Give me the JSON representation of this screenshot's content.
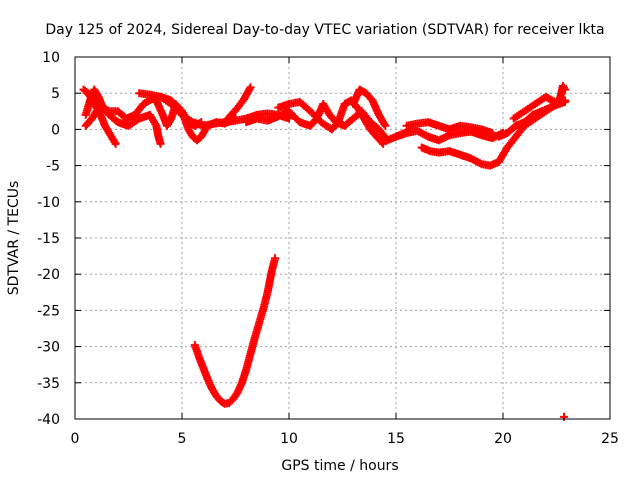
{
  "chart_data": {
    "type": "scatter",
    "title": "Day 125 of 2024, Sidereal Day-to-day VTEC variation (SDTVAR) for receiver lkta",
    "xlabel": "GPS time / hours",
    "ylabel": "SDTVAR / TECUs",
    "xlim": [
      0,
      25
    ],
    "ylim": [
      -40,
      10
    ],
    "xticks": [
      0,
      5,
      10,
      15,
      20,
      25
    ],
    "yticks": [
      10,
      5,
      0,
      -5,
      -10,
      -15,
      -20,
      -25,
      -30,
      -35,
      -40
    ],
    "grid": true,
    "marker": "+",
    "color": "#ff0000",
    "series": [
      {
        "name": "trace-1",
        "points": [
          [
            0.4,
            5.5
          ],
          [
            0.6,
            5.0
          ],
          [
            0.8,
            4.2
          ],
          [
            1.0,
            3.0
          ],
          [
            1.2,
            2.0
          ],
          [
            1.4,
            0.5
          ],
          [
            1.6,
            -0.5
          ],
          [
            1.8,
            -1.5
          ],
          [
            1.9,
            -2.0
          ]
        ]
      },
      {
        "name": "trace-2",
        "points": [
          [
            0.5,
            2.0
          ],
          [
            0.7,
            4.0
          ],
          [
            0.9,
            5.5
          ],
          [
            1.1,
            4.5
          ],
          [
            1.3,
            3.0
          ],
          [
            1.6,
            2.5
          ],
          [
            2.0,
            2.5
          ],
          [
            2.4,
            1.5
          ],
          [
            2.8,
            2.0
          ],
          [
            3.2,
            3.5
          ],
          [
            3.6,
            4.2
          ],
          [
            4.0,
            4.5
          ],
          [
            4.5,
            3.5
          ],
          [
            5.0,
            2.0
          ],
          [
            5.5,
            1.0
          ],
          [
            6.0,
            0.5
          ],
          [
            6.5,
            0.8
          ],
          [
            7.0,
            1.0
          ],
          [
            7.5,
            1.2
          ],
          [
            8.0,
            1.5
          ],
          [
            8.5,
            2.0
          ],
          [
            9.0,
            2.2
          ],
          [
            9.5,
            2.0
          ],
          [
            10.0,
            1.5
          ]
        ]
      },
      {
        "name": "trace-3",
        "points": [
          [
            0.5,
            0.5
          ],
          [
            0.8,
            1.5
          ],
          [
            1.2,
            3.5
          ],
          [
            1.6,
            2.0
          ],
          [
            2.0,
            1.0
          ],
          [
            2.5,
            0.5
          ],
          [
            3.0,
            1.5
          ],
          [
            3.5,
            2.0
          ],
          [
            3.8,
            0.5
          ],
          [
            3.9,
            -1.0
          ],
          [
            4.0,
            -2.0
          ]
        ]
      },
      {
        "name": "trace-4",
        "points": [
          [
            3.0,
            5.0
          ],
          [
            3.5,
            4.8
          ],
          [
            4.0,
            4.5
          ],
          [
            4.5,
            4.0
          ],
          [
            4.8,
            3.0
          ],
          [
            5.0,
            2.5
          ],
          [
            5.3,
            1.0
          ],
          [
            5.6,
            0.5
          ],
          [
            5.9,
            1.0
          ]
        ]
      },
      {
        "name": "trace-5",
        "points": [
          [
            3.8,
            4.0
          ],
          [
            4.1,
            2.0
          ],
          [
            4.3,
            0.5
          ],
          [
            4.5,
            1.5
          ],
          [
            4.7,
            3.5
          ],
          [
            5.0,
            2.5
          ],
          [
            5.3,
            0.0
          ],
          [
            5.5,
            -1.0
          ],
          [
            5.7,
            -1.5
          ],
          [
            5.9,
            -1.0
          ],
          [
            6.2,
            0.5
          ],
          [
            6.6,
            1.0
          ],
          [
            7.0,
            0.8
          ],
          [
            7.5,
            1.5
          ]
        ]
      },
      {
        "name": "trace-6",
        "points": [
          [
            7.0,
            1.0
          ],
          [
            7.3,
            2.0
          ],
          [
            7.6,
            3.0
          ],
          [
            7.9,
            4.2
          ],
          [
            8.2,
            5.8
          ]
        ]
      },
      {
        "name": "trace-7",
        "points": [
          [
            8.0,
            1.0
          ],
          [
            8.5,
            1.5
          ],
          [
            9.0,
            1.2
          ],
          [
            9.5,
            1.8
          ],
          [
            10.0,
            2.5
          ],
          [
            10.5,
            1.0
          ],
          [
            11.0,
            0.5
          ],
          [
            11.3,
            1.5
          ],
          [
            11.6,
            3.5
          ],
          [
            11.9,
            2.0
          ],
          [
            12.2,
            1.0
          ],
          [
            12.6,
            0.5
          ],
          [
            13.0,
            1.5
          ],
          [
            13.4,
            2.5
          ],
          [
            13.8,
            1.0
          ],
          [
            14.2,
            0.0
          ],
          [
            14.6,
            -1.5
          ],
          [
            15.0,
            -1.0
          ],
          [
            15.4,
            -0.5
          ],
          [
            15.8,
            0.0
          ]
        ]
      },
      {
        "name": "trace-8",
        "points": [
          [
            9.5,
            3.0
          ],
          [
            10.0,
            3.5
          ],
          [
            10.5,
            3.8
          ],
          [
            11.0,
            2.5
          ],
          [
            11.5,
            1.0
          ],
          [
            12.0,
            0.0
          ],
          [
            12.3,
            1.0
          ],
          [
            12.6,
            3.5
          ],
          [
            12.9,
            4.0
          ],
          [
            13.2,
            3.0
          ],
          [
            13.5,
            1.5
          ],
          [
            13.8,
            0.0
          ],
          [
            14.1,
            -1.0
          ],
          [
            14.4,
            -2.0
          ]
        ]
      },
      {
        "name": "trace-9",
        "points": [
          [
            13.0,
            3.5
          ],
          [
            13.3,
            5.5
          ],
          [
            13.6,
            5.0
          ],
          [
            13.9,
            4.0
          ],
          [
            14.2,
            2.0
          ],
          [
            14.5,
            0.5
          ]
        ]
      },
      {
        "name": "trace-10",
        "points": [
          [
            15.0,
            -1.0
          ],
          [
            15.5,
            -0.5
          ],
          [
            16.0,
            -0.2
          ],
          [
            16.5,
            -1.0
          ],
          [
            17.0,
            -1.5
          ],
          [
            17.5,
            -0.8
          ],
          [
            18.0,
            -0.5
          ],
          [
            18.5,
            -0.3
          ],
          [
            19.0,
            -0.8
          ],
          [
            19.5,
            -1.2
          ],
          [
            20.0,
            -0.5
          ]
        ]
      },
      {
        "name": "trace-11",
        "points": [
          [
            15.5,
            0.5
          ],
          [
            16.0,
            0.8
          ],
          [
            16.5,
            1.0
          ],
          [
            17.0,
            0.5
          ],
          [
            17.5,
            0.0
          ],
          [
            18.0,
            0.5
          ],
          [
            18.5,
            0.3
          ],
          [
            19.0,
            0.0
          ],
          [
            19.5,
            -0.5
          ]
        ]
      },
      {
        "name": "trace-12",
        "points": [
          [
            16.2,
            -2.5
          ],
          [
            16.6,
            -3.0
          ],
          [
            17.0,
            -3.2
          ],
          [
            17.5,
            -3.0
          ],
          [
            18.0,
            -3.5
          ],
          [
            18.5,
            -4.0
          ],
          [
            19.0,
            -4.8
          ],
          [
            19.4,
            -5.0
          ],
          [
            19.8,
            -4.5
          ],
          [
            20.2,
            -2.5
          ],
          [
            20.6,
            -1.0
          ],
          [
            21.0,
            0.5
          ],
          [
            21.5,
            1.5
          ],
          [
            22.0,
            2.5
          ],
          [
            22.5,
            3.5
          ],
          [
            22.9,
            4.0
          ]
        ]
      },
      {
        "name": "trace-13",
        "points": [
          [
            19.8,
            -1.0
          ],
          [
            20.2,
            -0.5
          ],
          [
            20.6,
            0.5
          ],
          [
            21.0,
            1.0
          ],
          [
            21.4,
            2.0
          ],
          [
            21.8,
            2.5
          ],
          [
            22.2,
            3.0
          ],
          [
            22.6,
            3.5
          ],
          [
            22.9,
            3.8
          ]
        ]
      },
      {
        "name": "trace-14",
        "points": [
          [
            20.5,
            1.5
          ],
          [
            21.0,
            2.5
          ],
          [
            21.5,
            3.5
          ],
          [
            22.0,
            4.5
          ],
          [
            22.3,
            4.0
          ],
          [
            22.6,
            3.5
          ],
          [
            22.8,
            6.0
          ],
          [
            22.9,
            5.5
          ]
        ]
      },
      {
        "name": "trace-15",
        "points": [
          [
            5.6,
            -29.8
          ],
          [
            5.8,
            -31.5
          ],
          [
            6.0,
            -33.0
          ],
          [
            6.2,
            -34.5
          ],
          [
            6.4,
            -35.8
          ],
          [
            6.6,
            -36.8
          ],
          [
            6.8,
            -37.5
          ],
          [
            7.0,
            -37.9
          ],
          [
            7.2,
            -37.8
          ],
          [
            7.4,
            -37.2
          ],
          [
            7.6,
            -36.3
          ],
          [
            7.8,
            -35.0
          ],
          [
            8.0,
            -33.2
          ],
          [
            8.2,
            -31.0
          ],
          [
            8.4,
            -28.8
          ],
          [
            8.6,
            -26.8
          ],
          [
            8.8,
            -24.8
          ],
          [
            9.0,
            -22.5
          ],
          [
            9.2,
            -19.5
          ],
          [
            9.35,
            -17.8
          ]
        ]
      },
      {
        "name": "outlier",
        "points": [
          [
            22.85,
            -39.7
          ]
        ]
      }
    ]
  }
}
